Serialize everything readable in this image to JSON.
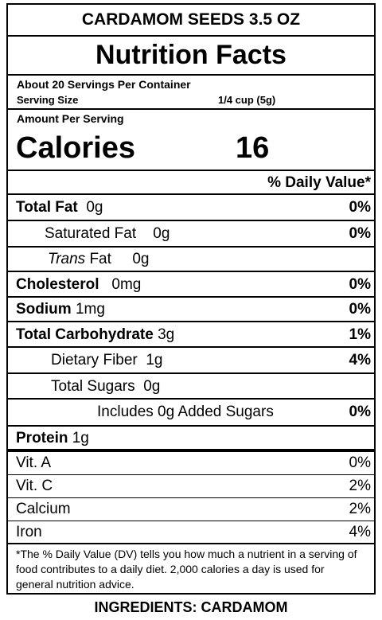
{
  "product_name": "CARDAMOM SEEDS 3.5 OZ",
  "title": "Nutrition Facts",
  "servings_per_container": "About 20 Servings Per Container",
  "serving_size_label": "Serving Size",
  "serving_size_value": "1/4 cup (5g)",
  "amount_per_serving": "Amount Per Serving",
  "calories_label": "Calories",
  "calories_value": "16",
  "daily_value_header": "% Daily Value*",
  "nutrients": {
    "total_fat": {
      "label": "Total Fat",
      "amount": "0g",
      "dv": "0%"
    },
    "saturated_fat": {
      "label": "Saturated Fat",
      "amount": "0g",
      "dv": "0%"
    },
    "trans_fat": {
      "label_italic": "Trans",
      "label": "Fat",
      "amount": "0g"
    },
    "cholesterol": {
      "label": "Cholesterol",
      "amount": "0mg",
      "dv": "0%"
    },
    "sodium": {
      "label": "Sodium",
      "amount": "1mg",
      "dv": "0%"
    },
    "total_carb": {
      "label": "Total Carbohydrate",
      "amount": "3g",
      "dv": "1%"
    },
    "dietary_fiber": {
      "label": "Dietary Fiber",
      "amount": "1g",
      "dv": "4%"
    },
    "total_sugars": {
      "label": "Total Sugars",
      "amount": "0g"
    },
    "added_sugars": {
      "label": "Includes 0g Added Sugars",
      "dv": "0%"
    },
    "protein": {
      "label": "Protein",
      "amount": "1g"
    }
  },
  "vitamins": [
    {
      "label": "Vit. A",
      "dv": "0%"
    },
    {
      "label": "Vit. C",
      "dv": "2%"
    },
    {
      "label": "Calcium",
      "dv": "2%"
    },
    {
      "label": "Iron",
      "dv": "4%"
    }
  ],
  "footnote": "*The % Daily Value (DV) tells you how much a nutrient in a serving of food contributes to a daily diet. 2,000 calories a day is used for general nutrition advice.",
  "ingredients": "INGREDIENTS: CARDAMOM"
}
